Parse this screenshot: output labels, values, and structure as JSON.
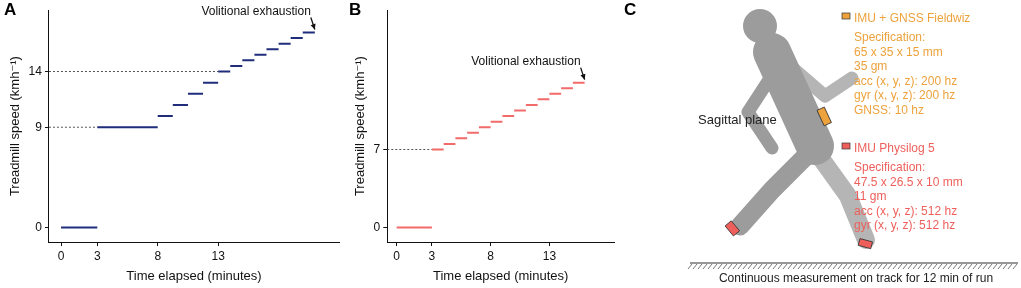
{
  "chart_data": [
    {
      "type": "line",
      "title": "A",
      "x_label": "Time elapsed (minutes)",
      "y_label": "Treadmill speed (kmh⁻¹)",
      "color": "#1f2d7b",
      "segments": [
        {
          "x_start": 0,
          "x_end": 3,
          "y": 0
        },
        {
          "x_start": 3,
          "x_end": 8,
          "y": 9
        },
        {
          "x_start": 8,
          "x_end": 9.25,
          "y": 10
        },
        {
          "x_start": 9.25,
          "x_end": 10.5,
          "y": 11
        },
        {
          "x_start": 10.5,
          "x_end": 11.75,
          "y": 12
        },
        {
          "x_start": 11.75,
          "x_end": 13,
          "y": 13
        },
        {
          "x_start": 13,
          "x_end": 14,
          "y": 14
        },
        {
          "x_start": 14,
          "x_end": 15,
          "y": 14.5
        },
        {
          "x_start": 15,
          "x_end": 16,
          "y": 15
        },
        {
          "x_start": 16,
          "x_end": 17,
          "y": 15.5
        },
        {
          "x_start": 17,
          "x_end": 18,
          "y": 16
        },
        {
          "x_start": 18,
          "x_end": 19,
          "y": 16.5
        },
        {
          "x_start": 19,
          "x_end": 20,
          "y": 17
        },
        {
          "x_start": 20,
          "x_end": 21,
          "y": 17.5
        }
      ],
      "reference_lines": [
        {
          "y": 9,
          "x_end": 3,
          "line_style": "dotted"
        },
        {
          "y": 14,
          "x_end": 13,
          "line_style": "dotted"
        }
      ],
      "annotations": [
        {
          "text": "Volitional exhaustion",
          "x": 21,
          "y": 17.5
        }
      ],
      "xlim": [
        -1,
        23
      ],
      "xticks": [
        0,
        3,
        8,
        13
      ],
      "ylim": [
        -1.3,
        19.5
      ],
      "yticks": [
        0,
        9,
        14
      ],
      "grid": false
    },
    {
      "type": "line",
      "title": "B",
      "x_label": "Time elapsed (minutes)",
      "y_label": "Treadmill speed (kmh⁻¹)",
      "color": "#f26b6b",
      "segments": [
        {
          "x_start": 0,
          "x_end": 3,
          "y": 0
        },
        {
          "x_start": 3,
          "x_end": 4,
          "y": 7
        },
        {
          "x_start": 4,
          "x_end": 5,
          "y": 7.5
        },
        {
          "x_start": 5,
          "x_end": 6,
          "y": 8
        },
        {
          "x_start": 6,
          "x_end": 7,
          "y": 8.5
        },
        {
          "x_start": 7,
          "x_end": 8,
          "y": 9
        },
        {
          "x_start": 8,
          "x_end": 9,
          "y": 9.5
        },
        {
          "x_start": 9,
          "x_end": 10,
          "y": 10
        },
        {
          "x_start": 10,
          "x_end": 11,
          "y": 10.5
        },
        {
          "x_start": 11,
          "x_end": 12,
          "y": 11
        },
        {
          "x_start": 12,
          "x_end": 13,
          "y": 11.5
        },
        {
          "x_start": 13,
          "x_end": 14,
          "y": 12
        },
        {
          "x_start": 14,
          "x_end": 15,
          "y": 12.5
        },
        {
          "x_start": 15,
          "x_end": 16,
          "y": 13
        }
      ],
      "reference_lines": [
        {
          "y": 7,
          "x_end": 3,
          "line_style": "dotted"
        }
      ],
      "annotations": [
        {
          "text": "Volitional exhaustion",
          "x": 16,
          "y": 13
        }
      ],
      "xlim": [
        -0.8,
        18.5
      ],
      "xticks": [
        0,
        3,
        8,
        13
      ],
      "ylim": [
        -1.3,
        19.5
      ],
      "yticks": [
        0,
        7
      ],
      "grid": false
    }
  ],
  "diagram": {
    "title": "C",
    "plane_label": "Sagittal plane",
    "caption": "Continuous measurement on track for 12 min of run",
    "sensors": [
      {
        "name": "IMU + GNSS Fieldwiz",
        "color": "#eda23c",
        "lines": [
          "Specification:",
          "65 x 35 x 15 mm",
          "35 gm",
          "acc (x, y, z): 200 hz",
          "gyr (x, y, z): 200 hz",
          "GNSS: 10 hz"
        ]
      },
      {
        "name": "IMU Physilog 5",
        "color": "#ee5f5b",
        "lines": [
          "Specification:",
          "47.5 x 26.5 x 10 mm",
          "11 gm",
          "acc (x, y, z): 512 hz",
          "gyr (x, y, z): 512 hz"
        ]
      }
    ]
  }
}
